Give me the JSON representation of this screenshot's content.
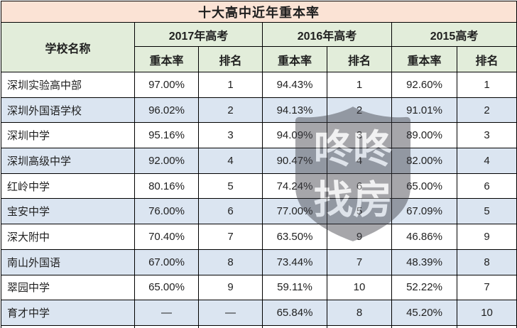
{
  "title": "十大高中近年重本率",
  "table": {
    "school_header": "学校名称",
    "year_headers": [
      "2017年高考",
      "2016年高考",
      "2015高考"
    ],
    "sub_rate": "重本率",
    "sub_rank": "排名",
    "col_names": [
      "school",
      "rate-2017",
      "rank-2017",
      "rate-2016",
      "rank-2016",
      "rate-2015",
      "rank-2015"
    ],
    "rows": [
      [
        "深圳实验高中部",
        "97.00%",
        "1",
        "94.43%",
        "1",
        "92.60%",
        "1"
      ],
      [
        "深圳外国语学校",
        "96.02%",
        "2",
        "94.13%",
        "2",
        "91.01%",
        "2"
      ],
      [
        "深圳中学",
        "95.16%",
        "3",
        "94.09%",
        "3",
        "89.00%",
        "3"
      ],
      [
        "深圳高级中学",
        "92.00%",
        "4",
        "90.47%",
        "4",
        "82.00%",
        "4"
      ],
      [
        "红岭中学",
        "80.16%",
        "5",
        "74.24%",
        "6",
        "65.00%",
        "6"
      ],
      [
        "宝安中学",
        "76.00%",
        "6",
        "77.00%",
        "5",
        "67.09%",
        "5"
      ],
      [
        "深大附中",
        "70.40%",
        "7",
        "63.50%",
        "9",
        "46.86%",
        "9"
      ],
      [
        "南山外国语",
        "67.00%",
        "8",
        "73.44%",
        "7",
        "48.39%",
        "8"
      ],
      [
        "翠园中学",
        "65.00%",
        "9",
        "59.11%",
        "10",
        "52.22%",
        "7"
      ],
      [
        "育才中学",
        "—",
        "—",
        "65.84%",
        "8",
        "45.20%",
        "10"
      ]
    ]
  },
  "watermark": {
    "line1": "咚咚",
    "line2": "找房"
  },
  "colors": {
    "title_bg": "#fbe3d5",
    "title_text": "#632423",
    "header_bg": "#e2edda",
    "row_alt_bg": "#dbe5f1",
    "border": "#000000",
    "watermark_fill": "#3c3c44"
  },
  "chart_data": {
    "type": "table",
    "title": "十大高中近年重本率",
    "columns": [
      "学校名称",
      "2017年高考 重本率",
      "2017年高考 排名",
      "2016年高考 重本率",
      "2016年高考 排名",
      "2015高考 重本率",
      "2015高考 排名"
    ],
    "rows": [
      [
        "深圳实验高中部",
        "97.00%",
        1,
        "94.43%",
        1,
        "92.60%",
        1
      ],
      [
        "深圳外国语学校",
        "96.02%",
        2,
        "94.13%",
        2,
        "91.01%",
        2
      ],
      [
        "深圳中学",
        "95.16%",
        3,
        "94.09%",
        3,
        "89.00%",
        3
      ],
      [
        "深圳高级中学",
        "92.00%",
        4,
        "90.47%",
        4,
        "82.00%",
        4
      ],
      [
        "红岭中学",
        "80.16%",
        5,
        "74.24%",
        6,
        "65.00%",
        6
      ],
      [
        "宝安中学",
        "76.00%",
        6,
        "77.00%",
        5,
        "67.09%",
        5
      ],
      [
        "深大附中",
        "70.40%",
        7,
        "63.50%",
        9,
        "46.86%",
        9
      ],
      [
        "南山外国语",
        "67.00%",
        8,
        "73.44%",
        7,
        "48.39%",
        8
      ],
      [
        "翠园中学",
        "65.00%",
        9,
        "59.11%",
        10,
        "52.22%",
        7
      ],
      [
        "育才中学",
        "—",
        "—",
        "65.84%",
        8,
        "45.20%",
        10
      ]
    ]
  }
}
